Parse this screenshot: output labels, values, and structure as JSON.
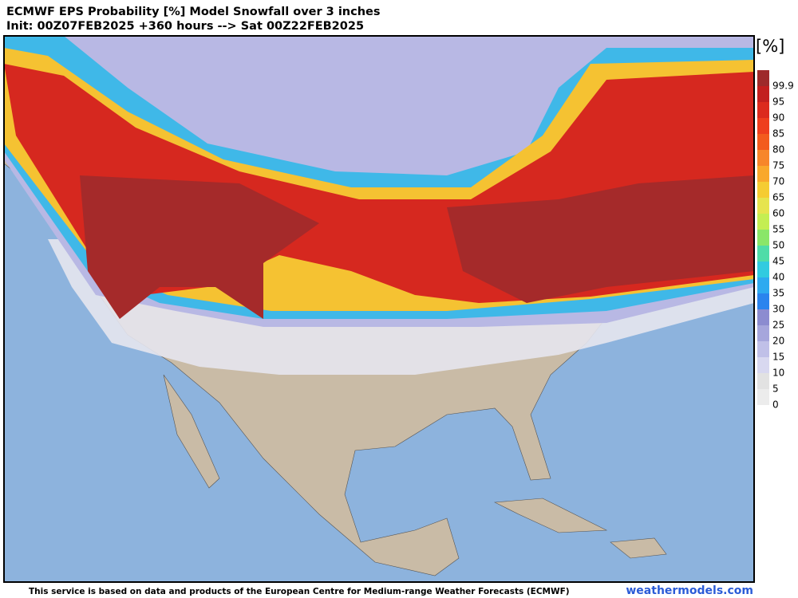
{
  "header": {
    "title": "ECMWF EPS Probability [%] Model Snowfall over 3 inches",
    "subtitle": "Init: 00Z07FEB2025 +360 hours --> Sat 00Z22FEB2025"
  },
  "legend": {
    "unit": "[%]",
    "levels": [
      99.9,
      95,
      90,
      85,
      80,
      75,
      70,
      65,
      60,
      55,
      50,
      45,
      40,
      35,
      30,
      25,
      20,
      15,
      10,
      5,
      0
    ],
    "colors": [
      "#9e2a2b",
      "#c21f1f",
      "#dc2a1e",
      "#ee3e1e",
      "#f35b1e",
      "#f7862a",
      "#f9a82c",
      "#f5cc32",
      "#e6e44e",
      "#c4ee52",
      "#8ae668",
      "#4fdca8",
      "#31cbe0",
      "#2eaaf0",
      "#2a84ee",
      "#8c8cd0",
      "#a6a6dc",
      "#c0c0e8",
      "#d8d8f0",
      "#e2e2e2",
      "#ececec"
    ]
  },
  "footer": {
    "credit": "This service is based on data and products of the European Centre for Medium-range Weather Forecasts (ECMWF)",
    "site": "weathermodels.com"
  }
}
